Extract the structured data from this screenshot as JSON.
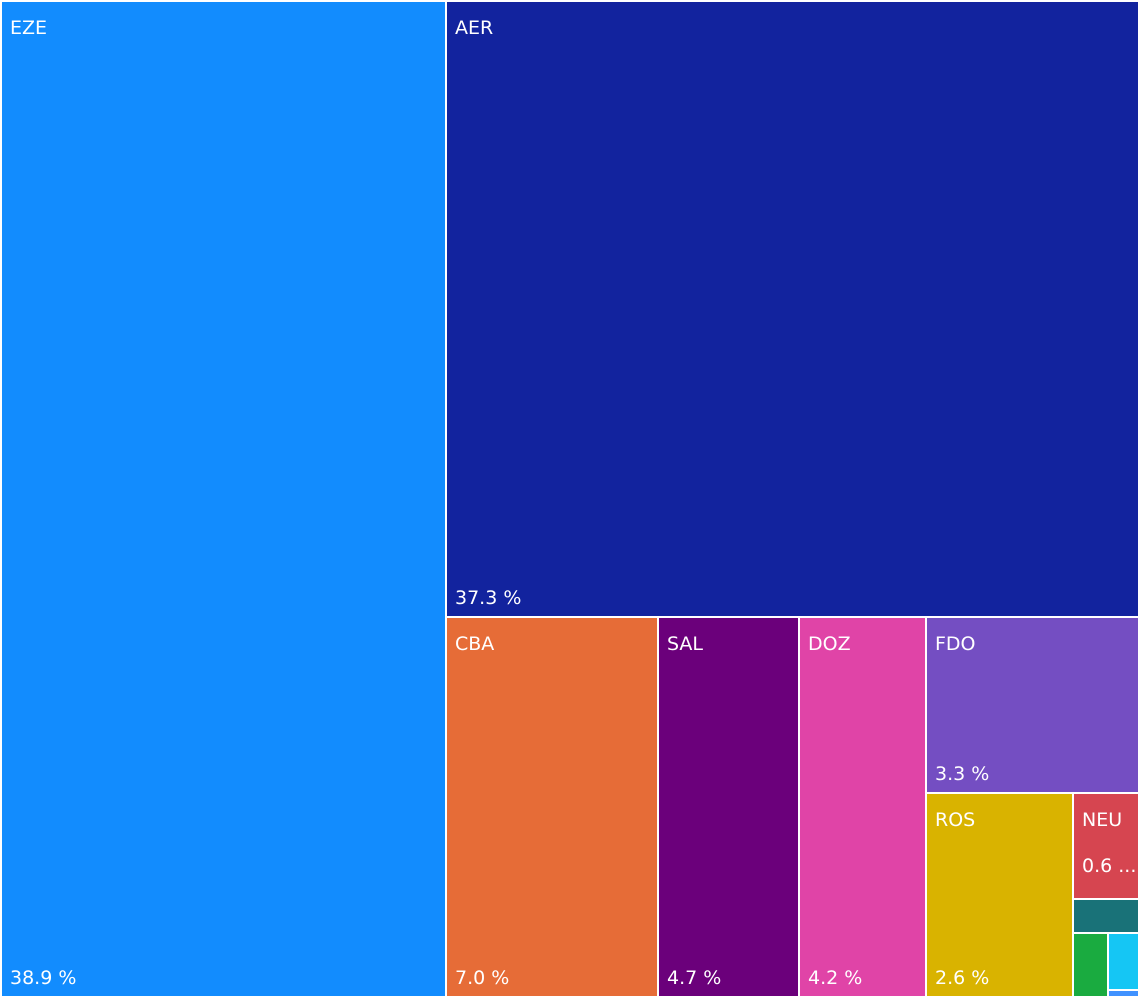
{
  "chart_data": {
    "type": "treemap",
    "items": [
      {
        "label": "EZE",
        "value": 38.9,
        "value_label": "38.9 %",
        "color": "#128cfe"
      },
      {
        "label": "AER",
        "value": 37.3,
        "value_label": "37.3 %",
        "color": "#12239e"
      },
      {
        "label": "CBA",
        "value": 7.0,
        "value_label": "7.0 %",
        "color": "#e66c37"
      },
      {
        "label": "SAL",
        "value": 4.7,
        "value_label": "4.7 %",
        "color": "#6b007b"
      },
      {
        "label": "DOZ",
        "value": 4.2,
        "value_label": "4.2 %",
        "color": "#e044a7"
      },
      {
        "label": "FDO",
        "value": 3.3,
        "value_label": "3.3 %",
        "color": "#744ec2"
      },
      {
        "label": "ROS",
        "value": 2.6,
        "value_label": "2.6 %",
        "color": "#d9b300"
      },
      {
        "label": "NEU",
        "value": 0.6,
        "value_label": "0.6 ...",
        "color": "#d64550"
      },
      {
        "label": "",
        "value": 0.3,
        "value_label": "",
        "color": "#197278"
      },
      {
        "label": "",
        "value": 0.2,
        "value_label": "",
        "color": "#1aab40"
      },
      {
        "label": "",
        "value": 0.15,
        "value_label": "",
        "color": "#15c6f4"
      },
      {
        "label": "",
        "value": 0.05,
        "value_label": "",
        "color": "#4092ff"
      }
    ]
  }
}
